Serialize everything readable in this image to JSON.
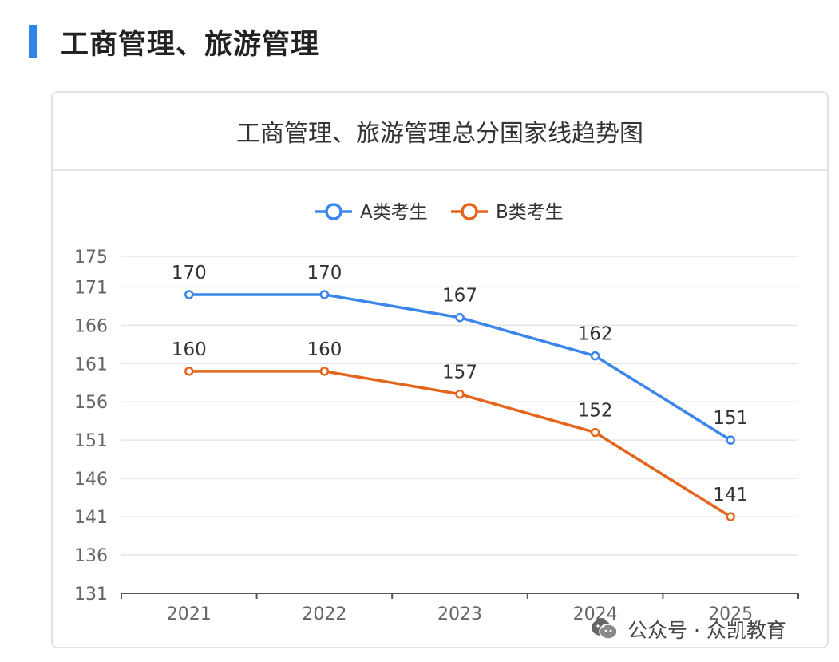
{
  "section": {
    "title": "工商管理、旅游管理"
  },
  "card": {
    "title": "工商管理、旅游管理总分国家线趋势图"
  },
  "watermark": {
    "text": "公众号 · 众凯教育"
  },
  "colors": {
    "accent": "#2f86ea",
    "seriesA": "#3a86ec",
    "seriesB": "#e4661c",
    "grid": "#e6e6e6",
    "axis": "#555555"
  },
  "chart_data": {
    "type": "line",
    "title": "工商管理、旅游管理总分国家线趋势图",
    "categories": [
      "2021",
      "2022",
      "2023",
      "2024",
      "2025"
    ],
    "series": [
      {
        "name": "A类考生",
        "values": [
          170,
          170,
          167,
          162,
          151
        ]
      },
      {
        "name": "B类考生",
        "values": [
          160,
          160,
          157,
          152,
          141
        ]
      }
    ],
    "yticks": [
      131,
      136,
      141,
      146,
      151,
      156,
      161,
      166,
      171,
      175
    ],
    "ylim": [
      131,
      175
    ],
    "legend": "top-center",
    "grid": true
  }
}
